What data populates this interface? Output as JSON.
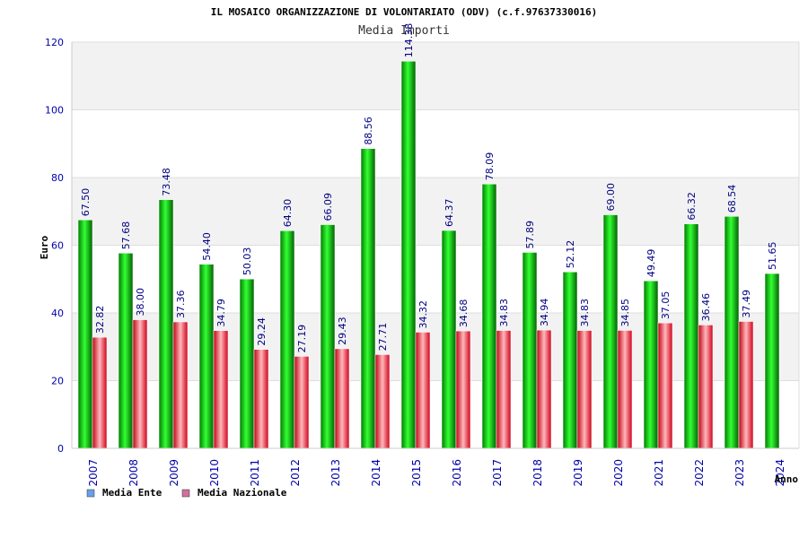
{
  "chart_data": {
    "type": "bar",
    "title": "IL MOSAICO ORGANIZZAZIONE DI VOLONTARIATO (ODV) (c.f.97637330016)",
    "subtitle": "Media Importi",
    "xlabel": "Anno",
    "ylabel": "Euro",
    "ylim": [
      0,
      120
    ],
    "yticks": [
      0,
      20,
      40,
      60,
      80,
      100,
      120
    ],
    "grid": true,
    "legend_position": "bottom-left",
    "categories": [
      "2007",
      "2008",
      "2009",
      "2010",
      "2011",
      "2012",
      "2013",
      "2014",
      "2015",
      "2016",
      "2017",
      "2018",
      "2019",
      "2020",
      "2021",
      "2022",
      "2023",
      "2024"
    ],
    "series": [
      {
        "name": "Media Ente",
        "legend_color": "#6aa0e8",
        "bar_color": "#00b400",
        "values": [
          67.5,
          57.68,
          73.48,
          54.4,
          50.03,
          64.3,
          66.09,
          88.56,
          114.38,
          64.37,
          78.09,
          57.89,
          52.12,
          69.0,
          49.49,
          66.32,
          68.54,
          51.65
        ],
        "labels": [
          "67.50",
          "57.68",
          "73.48",
          "54.40",
          "50.03",
          "64.30",
          "66.09",
          "88.56",
          "114.38",
          "64.37",
          "78.09",
          "57.89",
          "52.12",
          "69.00",
          "49.49",
          "66.32",
          "68.54",
          "51.65"
        ]
      },
      {
        "name": "Media Nazionale",
        "legend_color": "#d070a0",
        "bar_color": "#e0202a",
        "values": [
          32.82,
          38.0,
          37.36,
          34.79,
          29.24,
          27.19,
          29.43,
          27.71,
          34.32,
          34.68,
          34.83,
          34.94,
          34.83,
          34.85,
          37.05,
          36.46,
          37.49,
          null
        ],
        "labels": [
          "32.82",
          "38.00",
          "37.36",
          "34.79",
          "29.24",
          "27.19",
          "29.43",
          "27.71",
          "34.32",
          "34.68",
          "34.83",
          "34.94",
          "34.83",
          "34.85",
          "37.05",
          "36.46",
          "37.49",
          ""
        ]
      }
    ]
  }
}
